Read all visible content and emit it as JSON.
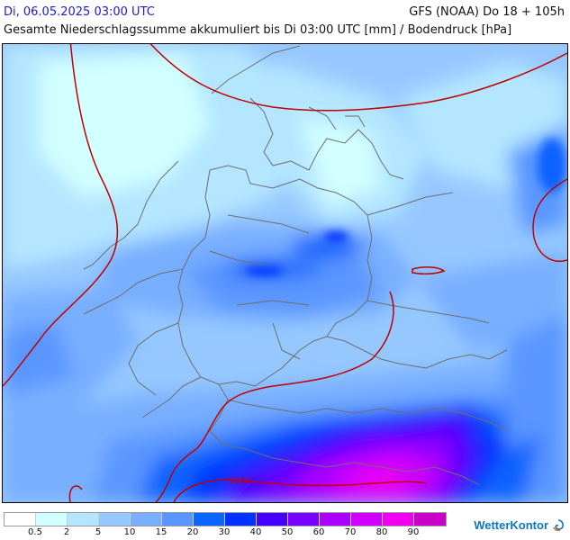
{
  "header": {
    "valid_time": "Di, 06.05.2025 03:00 UTC",
    "model": "GFS (NOAA) Do 18 + 105h",
    "subtitle": "Gesamte Niederschlagssumme akkumuliert bis Di 03:00 UTC [mm] / Bodendruck [hPa]"
  },
  "map": {
    "isobar_label": "1010",
    "isobar_color": "#c00000",
    "border_color": "#6e6e6e"
  },
  "legend": {
    "thresholds": [
      "0.5",
      "2",
      "5",
      "10",
      "15",
      "20",
      "30",
      "40",
      "50",
      "60",
      "70",
      "80",
      "90"
    ],
    "colors": [
      "#ffffff",
      "#d2ffff",
      "#b4e6ff",
      "#96c8ff",
      "#78afff",
      "#5a96ff",
      "#0a64ff",
      "#0032ff",
      "#4600ff",
      "#7800ff",
      "#aa00ff",
      "#d200ff",
      "#f000f0",
      "#c800c8"
    ]
  },
  "brand": {
    "name": "WetterKontor"
  }
}
